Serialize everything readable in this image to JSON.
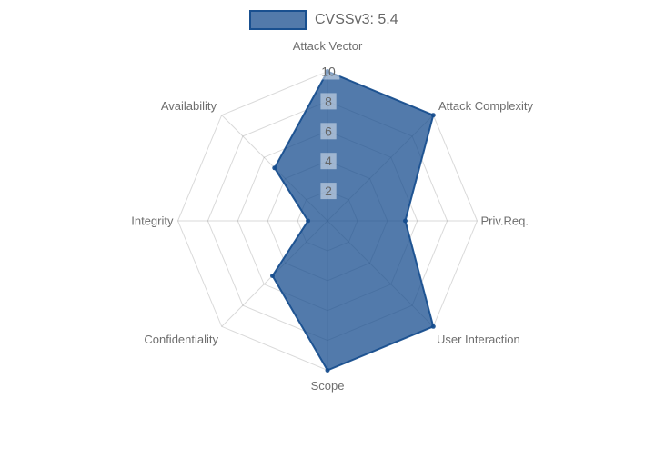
{
  "chart_data": {
    "type": "radar",
    "legend": "CVSSv3: 5.4",
    "axes": [
      "Attack Vector",
      "Attack Complexity",
      "Priv.Req.",
      "User Interaction",
      "Scope",
      "Confidentiality",
      "Integrity",
      "Availability"
    ],
    "values": [
      10,
      10,
      5.2,
      10,
      10,
      5.2,
      1.3,
      5.0
    ],
    "ticks": [
      2,
      4,
      6,
      8,
      10
    ],
    "scale_min": 0,
    "scale_max": 10,
    "grid": "spider-web",
    "legend_position": "top",
    "colors": {
      "fill": "rgba(21,76,141,0.74)",
      "border": "rgba(21,76,141,0.92)",
      "grid_line": "rgba(0,0,0,0.15)",
      "tick_backdrop": "rgba(255,255,255,0.45)",
      "tick_text": "#666666",
      "axis_label_text": "#6e6e6e",
      "legend_text": "#666666"
    }
  }
}
